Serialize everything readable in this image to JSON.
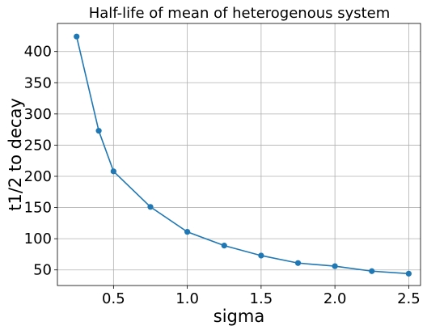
{
  "chart_data": {
    "type": "line",
    "title": "Half-life of mean of heterogenous system",
    "xlabel": "sigma",
    "ylabel": "t1/2 to decay",
    "xlim": [
      0.12,
      2.58
    ],
    "ylim": [
      25,
      445
    ],
    "xticks": [
      0.5,
      1.0,
      1.5,
      2.0,
      2.5
    ],
    "xtick_labels": [
      "0.5",
      "1.0",
      "1.5",
      "2.0",
      "2.5"
    ],
    "yticks": [
      50,
      100,
      150,
      200,
      250,
      300,
      350,
      400
    ],
    "ytick_labels": [
      "50",
      "100",
      "150",
      "200",
      "250",
      "300",
      "350",
      "400"
    ],
    "grid": true,
    "series": [
      {
        "color": "#1f77b4",
        "marker": "circle",
        "x": [
          0.25,
          0.4,
          0.5,
          0.75,
          1.0,
          1.25,
          1.5,
          1.75,
          2.0,
          2.25,
          2.5
        ],
        "y": [
          424,
          273,
          208,
          151,
          111,
          89,
          73,
          61,
          56,
          48,
          44
        ]
      }
    ]
  }
}
